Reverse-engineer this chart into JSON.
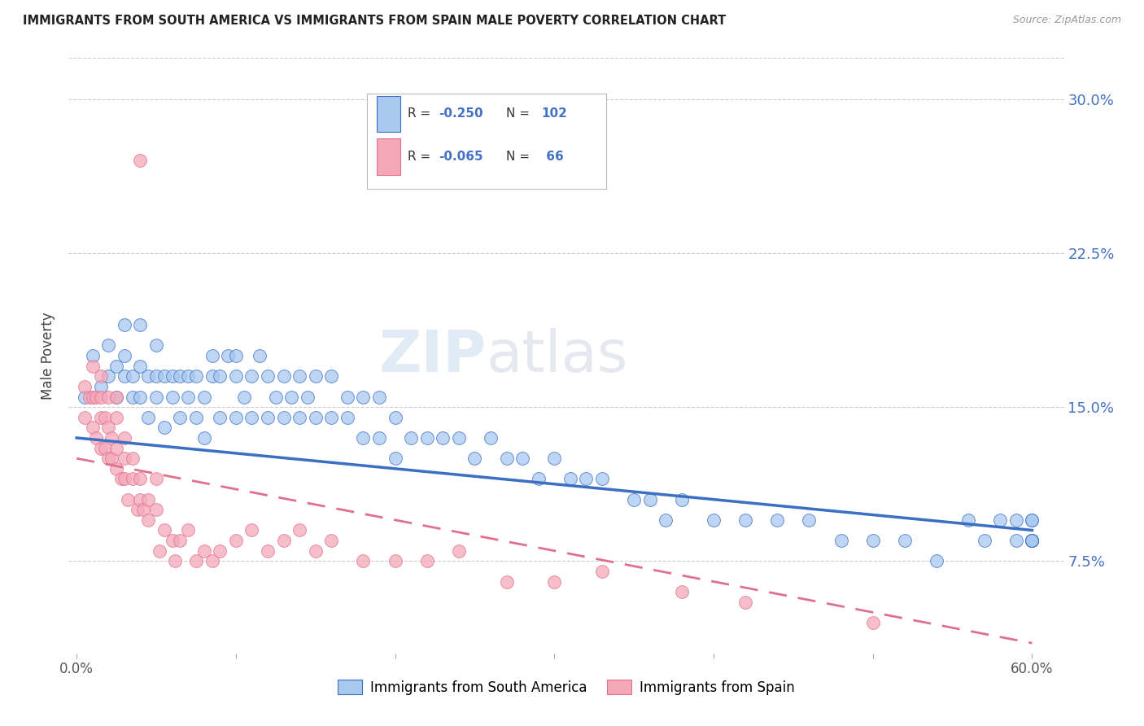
{
  "title": "IMMIGRANTS FROM SOUTH AMERICA VS IMMIGRANTS FROM SPAIN MALE POVERTY CORRELATION CHART",
  "source": "Source: ZipAtlas.com",
  "ylabel": "Male Poverty",
  "ytick_labels": [
    "7.5%",
    "15.0%",
    "22.5%",
    "30.0%"
  ],
  "ytick_values": [
    0.075,
    0.15,
    0.225,
    0.3
  ],
  "xlim": [
    -0.005,
    0.62
  ],
  "ylim": [
    0.03,
    0.32
  ],
  "color_blue": "#A8C8F0",
  "color_pink": "#F4A8B8",
  "line_blue": "#3A6FC4",
  "line_pink": "#E07090",
  "watermark_text": "ZIPatlas",
  "legend_label1": "Immigrants from South America",
  "legend_label2": "Immigrants from Spain",
  "blue_scatter_x": [
    0.005,
    0.01,
    0.015,
    0.02,
    0.02,
    0.025,
    0.025,
    0.03,
    0.03,
    0.03,
    0.035,
    0.035,
    0.04,
    0.04,
    0.04,
    0.045,
    0.045,
    0.05,
    0.05,
    0.05,
    0.055,
    0.055,
    0.06,
    0.06,
    0.065,
    0.065,
    0.07,
    0.07,
    0.075,
    0.075,
    0.08,
    0.08,
    0.085,
    0.085,
    0.09,
    0.09,
    0.095,
    0.1,
    0.1,
    0.1,
    0.105,
    0.11,
    0.11,
    0.115,
    0.12,
    0.12,
    0.125,
    0.13,
    0.13,
    0.135,
    0.14,
    0.14,
    0.145,
    0.15,
    0.15,
    0.16,
    0.16,
    0.17,
    0.17,
    0.18,
    0.18,
    0.19,
    0.19,
    0.2,
    0.2,
    0.21,
    0.22,
    0.23,
    0.24,
    0.25,
    0.26,
    0.27,
    0.28,
    0.29,
    0.3,
    0.31,
    0.32,
    0.33,
    0.35,
    0.36,
    0.37,
    0.38,
    0.4,
    0.42,
    0.44,
    0.46,
    0.48,
    0.5,
    0.52,
    0.54,
    0.56,
    0.57,
    0.58,
    0.59,
    0.59,
    0.6,
    0.6,
    0.6,
    0.6,
    0.6,
    0.6,
    0.6
  ],
  "blue_scatter_y": [
    0.155,
    0.175,
    0.16,
    0.165,
    0.18,
    0.155,
    0.17,
    0.165,
    0.175,
    0.19,
    0.155,
    0.165,
    0.155,
    0.17,
    0.19,
    0.145,
    0.165,
    0.155,
    0.165,
    0.18,
    0.14,
    0.165,
    0.155,
    0.165,
    0.145,
    0.165,
    0.155,
    0.165,
    0.145,
    0.165,
    0.135,
    0.155,
    0.165,
    0.175,
    0.145,
    0.165,
    0.175,
    0.145,
    0.165,
    0.175,
    0.155,
    0.145,
    0.165,
    0.175,
    0.145,
    0.165,
    0.155,
    0.145,
    0.165,
    0.155,
    0.145,
    0.165,
    0.155,
    0.145,
    0.165,
    0.145,
    0.165,
    0.145,
    0.155,
    0.135,
    0.155,
    0.135,
    0.155,
    0.125,
    0.145,
    0.135,
    0.135,
    0.135,
    0.135,
    0.125,
    0.135,
    0.125,
    0.125,
    0.115,
    0.125,
    0.115,
    0.115,
    0.115,
    0.105,
    0.105,
    0.095,
    0.105,
    0.095,
    0.095,
    0.095,
    0.095,
    0.085,
    0.085,
    0.085,
    0.075,
    0.095,
    0.085,
    0.095,
    0.085,
    0.095,
    0.085,
    0.095,
    0.085,
    0.095,
    0.085,
    0.085,
    0.085
  ],
  "pink_scatter_x": [
    0.005,
    0.005,
    0.008,
    0.01,
    0.01,
    0.01,
    0.012,
    0.012,
    0.015,
    0.015,
    0.015,
    0.015,
    0.018,
    0.018,
    0.02,
    0.02,
    0.02,
    0.022,
    0.022,
    0.025,
    0.025,
    0.025,
    0.025,
    0.028,
    0.03,
    0.03,
    0.03,
    0.032,
    0.035,
    0.035,
    0.038,
    0.04,
    0.04,
    0.04,
    0.042,
    0.045,
    0.045,
    0.05,
    0.05,
    0.052,
    0.055,
    0.06,
    0.062,
    0.065,
    0.07,
    0.075,
    0.08,
    0.085,
    0.09,
    0.1,
    0.11,
    0.12,
    0.13,
    0.14,
    0.15,
    0.16,
    0.18,
    0.2,
    0.22,
    0.24,
    0.27,
    0.3,
    0.33,
    0.38,
    0.42,
    0.5
  ],
  "pink_scatter_y": [
    0.16,
    0.145,
    0.155,
    0.14,
    0.155,
    0.17,
    0.135,
    0.155,
    0.13,
    0.145,
    0.155,
    0.165,
    0.13,
    0.145,
    0.125,
    0.14,
    0.155,
    0.125,
    0.135,
    0.12,
    0.13,
    0.145,
    0.155,
    0.115,
    0.115,
    0.125,
    0.135,
    0.105,
    0.115,
    0.125,
    0.1,
    0.105,
    0.115,
    0.27,
    0.1,
    0.095,
    0.105,
    0.1,
    0.115,
    0.08,
    0.09,
    0.085,
    0.075,
    0.085,
    0.09,
    0.075,
    0.08,
    0.075,
    0.08,
    0.085,
    0.09,
    0.08,
    0.085,
    0.09,
    0.08,
    0.085,
    0.075,
    0.075,
    0.075,
    0.08,
    0.065,
    0.065,
    0.07,
    0.06,
    0.055,
    0.045
  ]
}
